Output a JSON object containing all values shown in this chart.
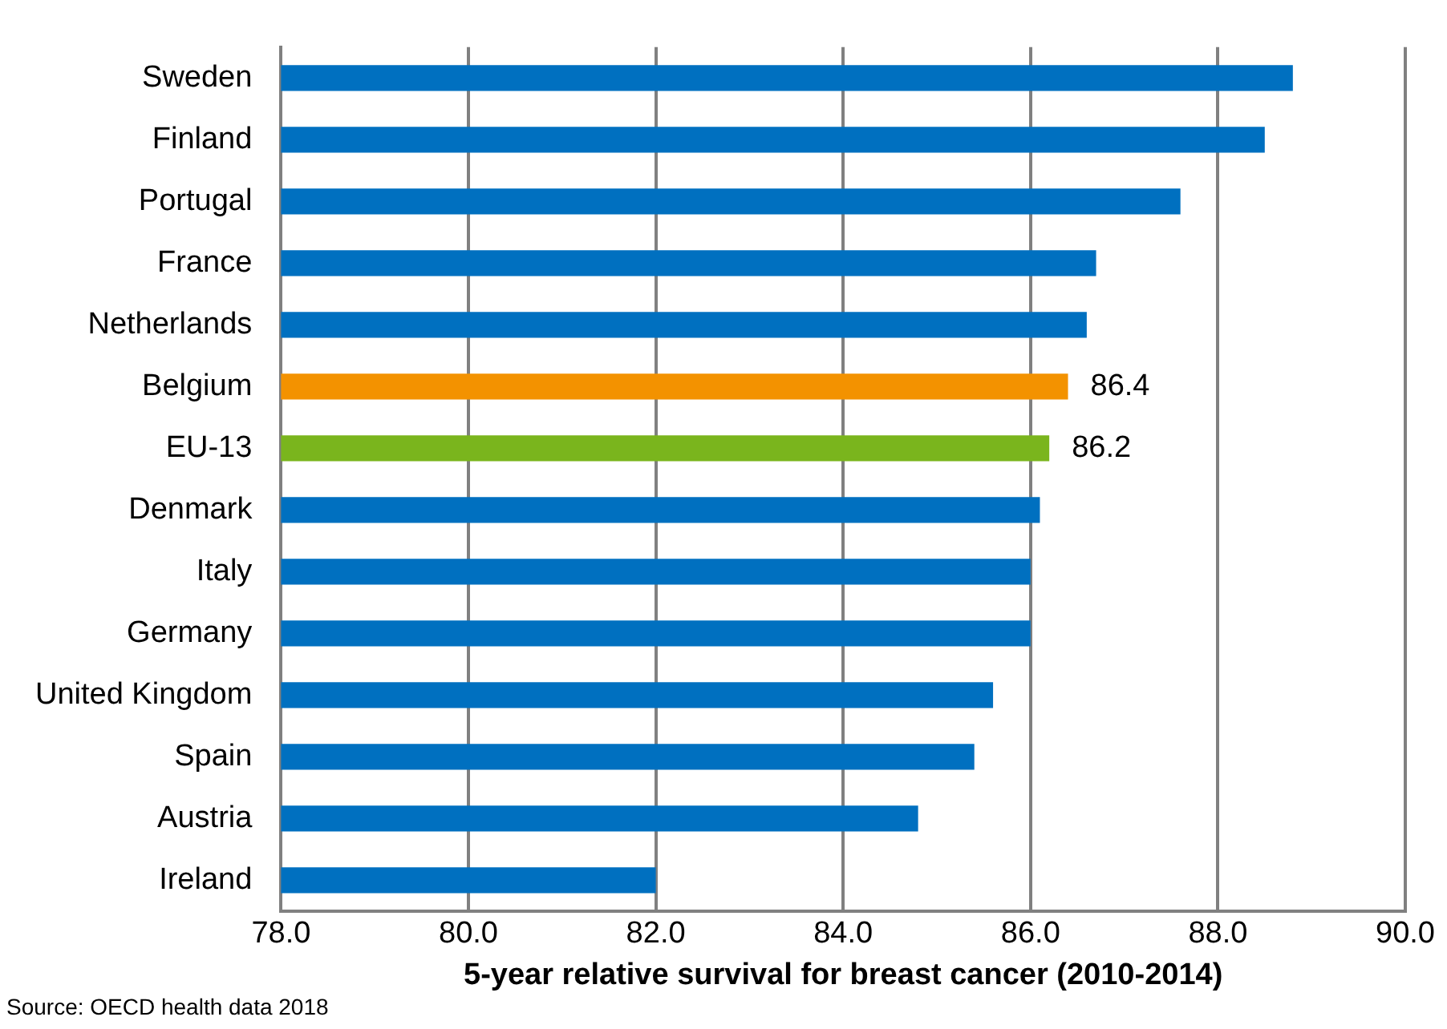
{
  "chart_data": {
    "type": "bar",
    "orientation": "horizontal",
    "xlabel": "5-year relative survival for breast cancer (2010-2014)",
    "categories": [
      "Sweden",
      "Finland",
      "Portugal",
      "France",
      "Netherlands",
      "Belgium",
      "EU-13",
      "Denmark",
      "Italy",
      "Germany",
      "United Kingdom",
      "Spain",
      "Austria",
      "Ireland"
    ],
    "values": [
      88.8,
      88.5,
      87.6,
      86.7,
      86.6,
      86.4,
      86.2,
      86.1,
      86.0,
      86.0,
      85.6,
      85.4,
      84.8,
      82.0
    ],
    "colors": [
      "#0070c0",
      "#0070c0",
      "#0070c0",
      "#0070c0",
      "#0070c0",
      "#f39200",
      "#7ab51d",
      "#0070c0",
      "#0070c0",
      "#0070c0",
      "#0070c0",
      "#0070c0",
      "#0070c0",
      "#0070c0"
    ],
    "value_labels": [
      null,
      null,
      null,
      null,
      null,
      "86.4",
      "86.2",
      null,
      null,
      null,
      null,
      null,
      null,
      null
    ],
    "xlim": [
      78,
      90
    ],
    "xticks": [
      {
        "value": 78,
        "label": "78.0"
      },
      {
        "value": 80,
        "label": "80.0"
      },
      {
        "value": 82,
        "label": "82.0"
      },
      {
        "value": 84,
        "label": "84.0"
      },
      {
        "value": 86,
        "label": "86.0"
      },
      {
        "value": 88,
        "label": "88.0"
      },
      {
        "value": 90,
        "label": "90.0"
      }
    ],
    "grid": "x",
    "legend": false,
    "annotations": [
      "Source: OECD health data 2018"
    ]
  }
}
